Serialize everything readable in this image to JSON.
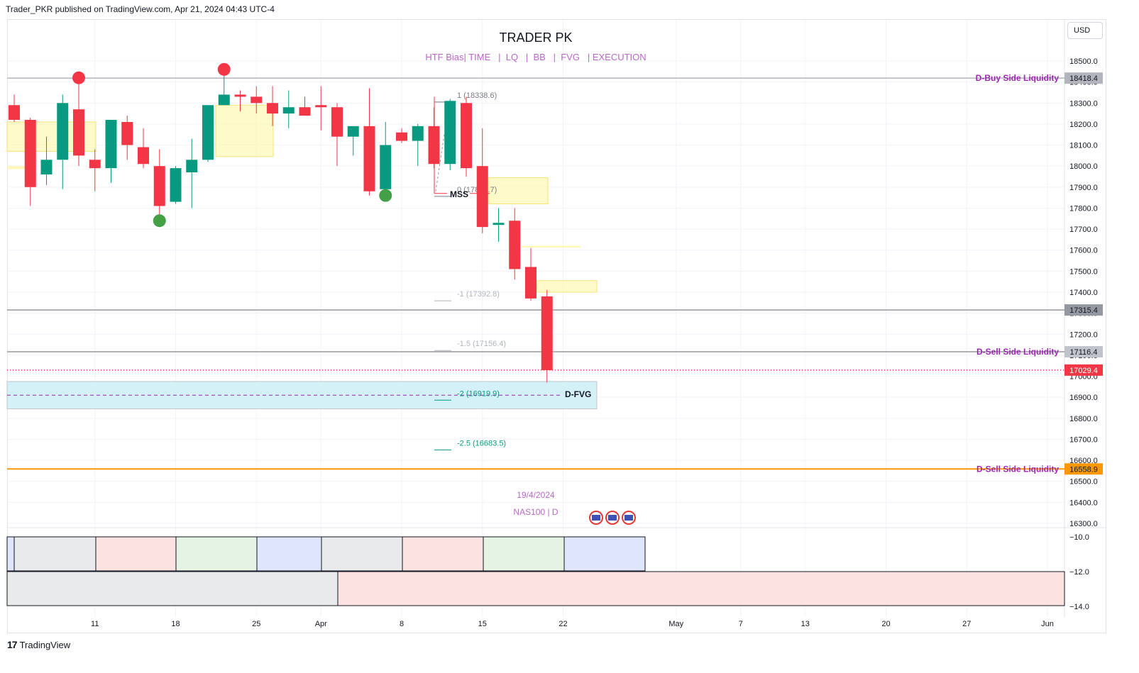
{
  "header": {
    "publish_line": "Trader_PKR published on TradingView.com, Apr 21, 2024 04:43 UTC-4",
    "title": "TRADER PK",
    "subtitle": "HTF Bias| TIME   |  LQ   |  BB   |  FVG   | EXECUTION",
    "currency_button": "USD"
  },
  "footer": {
    "brand": "TradingView",
    "brand_mark": "17"
  },
  "chart_data": {
    "type": "candlestick",
    "symbol_label": "NAS100 | D",
    "date_label": "19/4/2024",
    "colors": {
      "up": "#089981",
      "down": "#f23645",
      "fvg_box": "#fff59d",
      "d_fvg_box": "#d4f1f7",
      "liquidity_text": "#9c27b0"
    },
    "y_axis": {
      "range": [
        16250,
        18620
      ],
      "ticks": [
        18500,
        18400,
        18300,
        18200,
        18100,
        18000,
        17900,
        17800,
        17700,
        17600,
        17500,
        17400,
        17300,
        17200,
        17100,
        17000,
        16900,
        16800,
        16700,
        16600,
        16500,
        16400,
        16300
      ],
      "tick_labels": [
        "18500.0",
        "18400.0",
        "18300.0",
        "18200.0",
        "18100.0",
        "18000.0",
        "17900.0",
        "17800.0",
        "17700.0",
        "17600.0",
        "17500.0",
        "17400.0",
        "17300.0",
        "17200.0",
        "17100.0",
        "17000.0",
        "16900.0",
        "16800.0",
        "16700.0",
        "16600.0",
        "16500.0",
        "16400.0",
        "16300.0"
      ]
    },
    "x_axis": {
      "labels": [
        {
          "text": "11",
          "i": 5
        },
        {
          "text": "18",
          "i": 10
        },
        {
          "text": "25",
          "i": 15
        },
        {
          "text": "Apr",
          "i": 19
        },
        {
          "text": "8",
          "i": 24
        },
        {
          "text": "15",
          "i": 29
        },
        {
          "text": "22",
          "i": 34
        },
        {
          "text": "May",
          "i": 41
        },
        {
          "text": "7",
          "i": 45
        },
        {
          "text": "13",
          "i": 49
        },
        {
          "text": "20",
          "i": 54
        },
        {
          "text": "27",
          "i": 59
        },
        {
          "text": "Jun",
          "i": 64
        }
      ]
    },
    "candles": [
      {
        "o": 18290,
        "h": 18340,
        "l": 18210,
        "c": 18220
      },
      {
        "o": 18220,
        "h": 18230,
        "l": 17810,
        "c": 17900
      },
      {
        "o": 17960,
        "h": 18140,
        "l": 17910,
        "c": 18030
      },
      {
        "o": 18030,
        "h": 18340,
        "l": 17890,
        "c": 18300
      },
      {
        "o": 18270,
        "h": 18430,
        "l": 18000,
        "c": 18050
      },
      {
        "o": 18030,
        "h": 18080,
        "l": 17880,
        "c": 17990
      },
      {
        "o": 17990,
        "h": 18220,
        "l": 17920,
        "c": 18220
      },
      {
        "o": 18210,
        "h": 18240,
        "l": 18030,
        "c": 18100
      },
      {
        "o": 18090,
        "h": 18180,
        "l": 17990,
        "c": 18010
      },
      {
        "o": 18000,
        "h": 18080,
        "l": 17760,
        "c": 17810
      },
      {
        "o": 17830,
        "h": 18000,
        "l": 17820,
        "c": 17990
      },
      {
        "o": 17970,
        "h": 18130,
        "l": 17800,
        "c": 18030
      },
      {
        "o": 18030,
        "h": 18290,
        "l": 18020,
        "c": 18290
      },
      {
        "o": 18290,
        "h": 18430,
        "l": 18290,
        "c": 18340
      },
      {
        "o": 18340,
        "h": 18360,
        "l": 18260,
        "c": 18330
      },
      {
        "o": 18330,
        "h": 18380,
        "l": 18250,
        "c": 18300
      },
      {
        "o": 18300,
        "h": 18380,
        "l": 18190,
        "c": 18250
      },
      {
        "o": 18250,
        "h": 18360,
        "l": 18180,
        "c": 18280
      },
      {
        "o": 18280,
        "h": 18330,
        "l": 18240,
        "c": 18240
      },
      {
        "o": 18290,
        "h": 18380,
        "l": 18170,
        "c": 18280
      },
      {
        "o": 18280,
        "h": 18300,
        "l": 18000,
        "c": 18140
      },
      {
        "o": 18140,
        "h": 18190,
        "l": 18050,
        "c": 18190
      },
      {
        "o": 18190,
        "h": 18370,
        "l": 17860,
        "c": 17880
      },
      {
        "o": 17890,
        "h": 18210,
        "l": 17880,
        "c": 18100
      },
      {
        "o": 18160,
        "h": 18180,
        "l": 18110,
        "c": 18120
      },
      {
        "o": 18120,
        "h": 18200,
        "l": 18000,
        "c": 18190
      },
      {
        "o": 18190,
        "h": 18280,
        "l": 17990,
        "c": 18010
      },
      {
        "o": 18010,
        "h": 18320,
        "l": 17980,
        "c": 18310
      },
      {
        "o": 18300,
        "h": 18330,
        "l": 17950,
        "c": 17990
      },
      {
        "o": 18000,
        "h": 18180,
        "l": 17680,
        "c": 17710
      },
      {
        "o": 17720,
        "h": 17800,
        "l": 17640,
        "c": 17730
      },
      {
        "o": 17740,
        "h": 17800,
        "l": 17460,
        "c": 17510
      },
      {
        "o": 17520,
        "h": 17610,
        "l": 17360,
        "c": 17370
      },
      {
        "o": 17380,
        "h": 17410,
        "l": 16970,
        "c": 17029
      }
    ],
    "swing_markers": [
      {
        "i": 4,
        "price": 18420,
        "color": "#f23645"
      },
      {
        "i": 13,
        "price": 18460,
        "color": "#f23645"
      },
      {
        "i": 9,
        "price": 17740,
        "color": "#43a047"
      },
      {
        "i": 23,
        "price": 17860,
        "color": "#43a047"
      }
    ],
    "levels": [
      {
        "price": 18418.4,
        "label": "D-Buy Side Liquidity",
        "tag": "18418.4",
        "line_color": "#b2b5be",
        "tag_bg": "#b2b5be",
        "tag_color": "#131722"
      },
      {
        "price": 17315.4,
        "label": "",
        "tag": "17315.4",
        "line_color": "#9598a1",
        "tag_bg": "#9598a1",
        "tag_color": "#131722"
      },
      {
        "price": 17116.4,
        "label": "D-Sell Side Liquidity",
        "tag": "17116.4",
        "line_color": "#9598a1",
        "tag_bg": "#c0c3cb",
        "tag_color": "#131722"
      },
      {
        "price": 17029.4,
        "label": "",
        "tag": "17029.4",
        "line_color": "#f23645",
        "tag_bg": "#f23645",
        "tag_color": "#ffffff"
      },
      {
        "price": 16558.9,
        "label": "D-Sell Side Liquidity",
        "tag": "16558.9",
        "line_color": "#ff9800",
        "tag_bg": "#ff9800",
        "tag_color": "#131722"
      }
    ],
    "fib_levels": [
      {
        "text": "1 (18338.6)",
        "price": 18338.6,
        "color": "#787b86"
      },
      {
        "text": "0 (17889.7)",
        "price": 17889.7,
        "color": "#787b86"
      },
      {
        "text": "-1 (17392.8)",
        "price": 17392.8,
        "color": "#b2b5be"
      },
      {
        "text": "-1.5 (17156.4)",
        "price": 17156.4,
        "color": "#b2b5be"
      },
      {
        "text": "-2 (16919.9)",
        "price": 16919.9,
        "color": "#089981"
      },
      {
        "text": "-2.5 (16683.5)",
        "price": 16683.5,
        "color": "#089981"
      }
    ],
    "labels": {
      "mss": "MSS",
      "d_fvg": "D-FVG"
    },
    "sub_panel": {
      "ticks": [
        "10.0",
        "12.0",
        "14.0"
      ],
      "row1_colors": [
        "#dfe3f7",
        "#e9eaec",
        "#fde2e2",
        "#e4f3e4",
        "#dfe5fb",
        "#e9eaec",
        "#fde2e2",
        "#e4f3e4",
        "#dfe5fb"
      ],
      "row2_colors": [
        "#e9eaec",
        "#fde2e2"
      ]
    }
  }
}
